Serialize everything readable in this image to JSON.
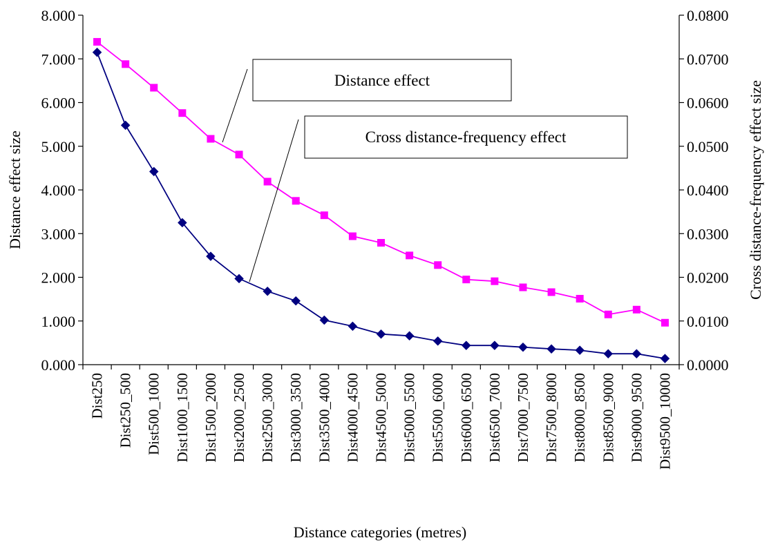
{
  "chart_data": {
    "type": "line",
    "xlabel": "Distance categories (metres)",
    "ylabel": "Distance effect size",
    "y2label": "Cross distance-frequency effect size",
    "ylim": [
      0,
      8
    ],
    "y2lim": [
      0,
      0.08
    ],
    "yticks": [
      "0.000",
      "1.000",
      "2.000",
      "3.000",
      "4.000",
      "5.000",
      "6.000",
      "7.000",
      "8.000"
    ],
    "y2ticks": [
      "0.0000",
      "0.0100",
      "0.0200",
      "0.0300",
      "0.0400",
      "0.0500",
      "0.0600",
      "0.0700",
      "0.0800"
    ],
    "grid": false,
    "categories": [
      "Dist250",
      "Dist250_500",
      "Dist500_1000",
      "Dist1000_1500",
      "Dist1500_2000",
      "Dist2000_2500",
      "Dist2500_3000",
      "Dist3000_3500",
      "Dist3500_4000",
      "Dist4000_4500",
      "Dist4500_5000",
      "Dist5000_5500",
      "Dist5500_6000",
      "Dist6000_6500",
      "Dist6500_7000",
      "Dist7000_7500",
      "Dist7500_8000",
      "Dist8000_8500",
      "Dist8500_9000",
      "Dist9000_9500",
      "Dist9500_10000"
    ],
    "series": [
      {
        "name": "Distance effect",
        "axis": "left",
        "marker": "diamond",
        "color": "#000080",
        "values": [
          7.15,
          5.48,
          4.42,
          3.25,
          2.48,
          1.97,
          1.68,
          1.46,
          1.02,
          0.88,
          0.7,
          0.66,
          0.54,
          0.44,
          0.44,
          0.4,
          0.36,
          0.33,
          0.25,
          0.25,
          0.14
        ]
      },
      {
        "name": "Cross distance-frequency effect",
        "axis": "right",
        "marker": "square",
        "color": "#FF00FF",
        "values": [
          0.0739,
          0.0688,
          0.0634,
          0.0576,
          0.0517,
          0.0481,
          0.0419,
          0.0375,
          0.0342,
          0.0294,
          0.0279,
          0.025,
          0.0228,
          0.0195,
          0.0191,
          0.0177,
          0.0166,
          0.0151,
          0.0115,
          0.0126,
          0.0096
        ]
      }
    ],
    "annotations": [
      "Distance effect",
      "Cross distance-frequency effect"
    ]
  }
}
